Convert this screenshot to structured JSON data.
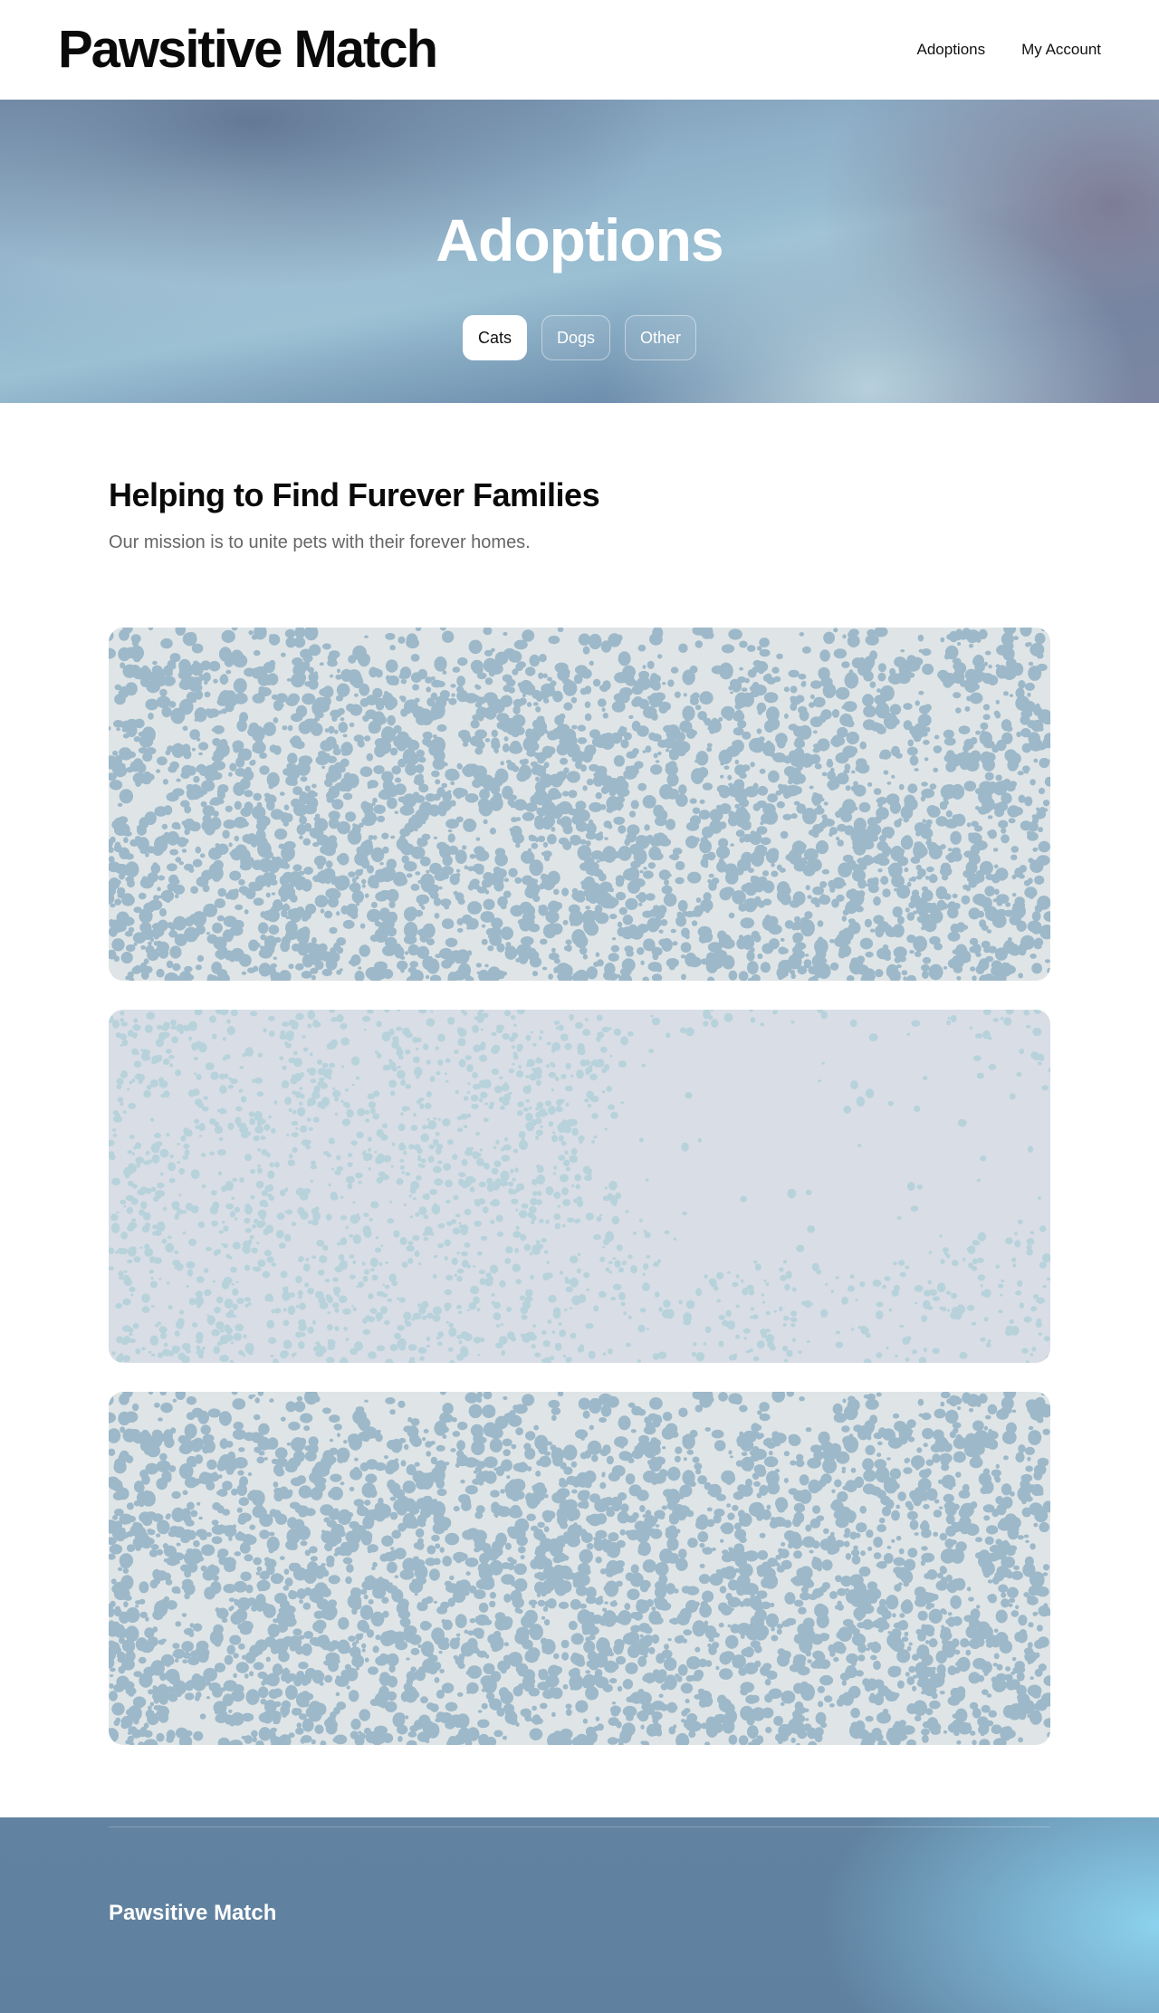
{
  "header": {
    "brand": "Pawsitive Match",
    "nav": [
      {
        "label": "Adoptions"
      },
      {
        "label": "My Account"
      }
    ]
  },
  "hero": {
    "title": "Adoptions",
    "filters": [
      {
        "label": "Cats",
        "active": true
      },
      {
        "label": "Dogs",
        "active": false
      },
      {
        "label": "Other",
        "active": false
      }
    ]
  },
  "intro": {
    "heading": "Helping to Find Furever Families",
    "subheading": "Our mission is to unite pets with their forever homes."
  },
  "cards": [
    {
      "name": "pet-card-1",
      "background": "#dfe5e6",
      "dot_color": "#9db8c9"
    },
    {
      "name": "pet-card-2",
      "background": "#d8dde6",
      "dot_color": "#b7d2da"
    },
    {
      "name": "pet-card-3",
      "background": "#dfe5e6",
      "dot_color": "#9db8c9"
    }
  ],
  "footer": {
    "brand": "Pawsitive Match"
  }
}
